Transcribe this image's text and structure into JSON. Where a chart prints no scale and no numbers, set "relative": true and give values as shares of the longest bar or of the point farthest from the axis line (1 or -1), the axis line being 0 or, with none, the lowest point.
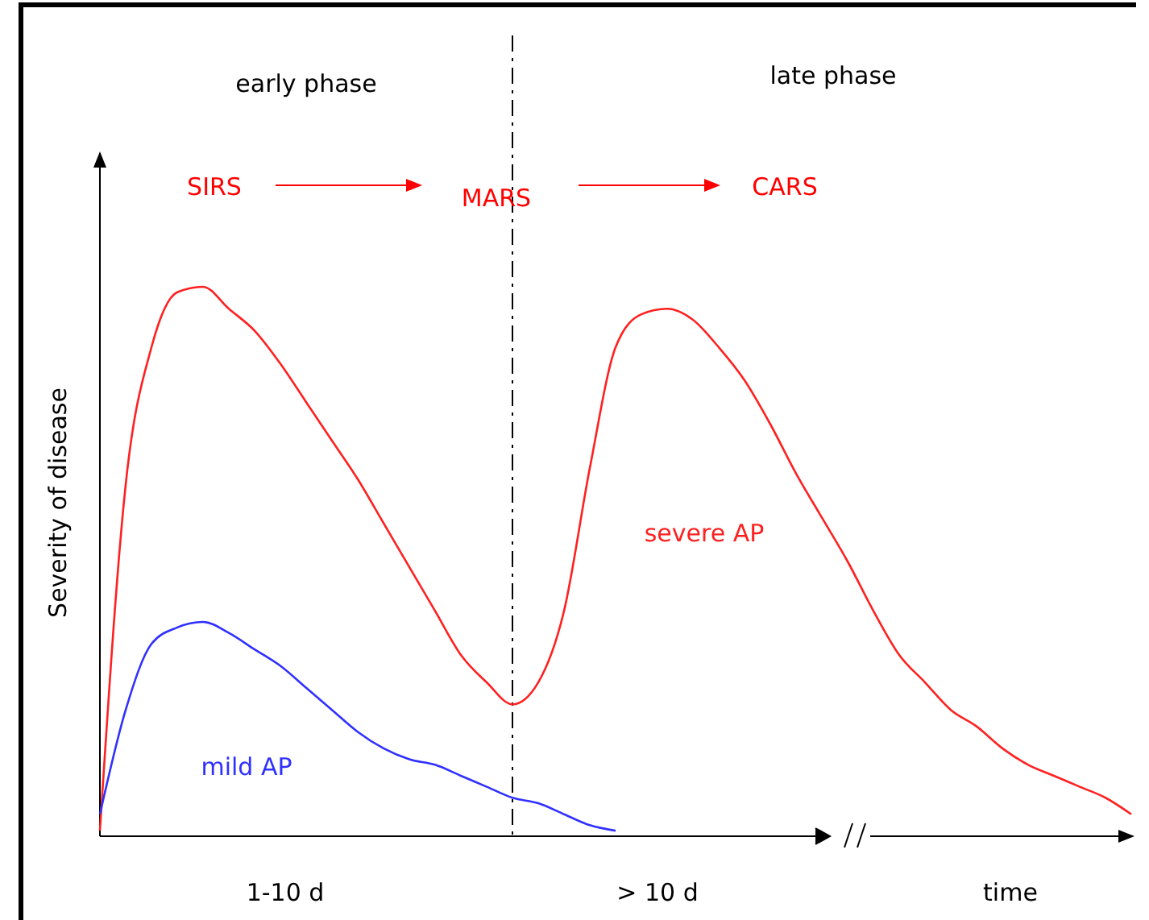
{
  "chart_data": {
    "type": "line",
    "relative": true,
    "xlabel": "time",
    "ylabel": "Severity of disease",
    "categories": [
      null,
      null,
      null,
      null,
      null,
      null,
      null,
      null,
      null,
      null,
      null,
      null,
      null,
      null,
      null,
      null,
      null,
      null,
      null,
      null,
      null,
      null,
      null,
      null,
      null,
      null,
      null,
      null,
      null,
      null,
      null,
      null,
      null,
      null,
      null,
      null,
      null,
      null,
      null,
      null,
      null
    ],
    "series": [
      {
        "name": "severe AP",
        "color": "#ff2020",
        "values": [
          0.01,
          0.64,
          0.89,
          0.99,
          1.0,
          0.96,
          0.92,
          0.86,
          0.79,
          0.72,
          0.65,
          0.57,
          0.49,
          0.41,
          0.33,
          0.28,
          0.24,
          0.28,
          0.41,
          0.67,
          0.89,
          0.95,
          0.96,
          0.94,
          0.89,
          0.83,
          0.75,
          0.66,
          0.58,
          0.5,
          0.41,
          0.33,
          0.28,
          0.23,
          0.2,
          0.16,
          0.13,
          0.11,
          0.09,
          0.07,
          0.04
        ]
      },
      {
        "name": "mild AP",
        "color": "#3030ff",
        "values": [
          0.04,
          0.23,
          0.35,
          0.38,
          0.39,
          0.37,
          0.34,
          0.31,
          0.27,
          0.23,
          0.19,
          0.16,
          0.14,
          0.13,
          0.11,
          0.09,
          0.07,
          0.06,
          0.04,
          0.02,
          0.01,
          null,
          null,
          null,
          null,
          null,
          null,
          null,
          null,
          null,
          null,
          null,
          null,
          null,
          null,
          null,
          null,
          null,
          null,
          null,
          null
        ]
      }
    ],
    "annotations": [
      "early phase",
      "late phase",
      "SIRS",
      "MARS",
      "CARS",
      "1-10 d",
      "> 10 d"
    ]
  }
}
